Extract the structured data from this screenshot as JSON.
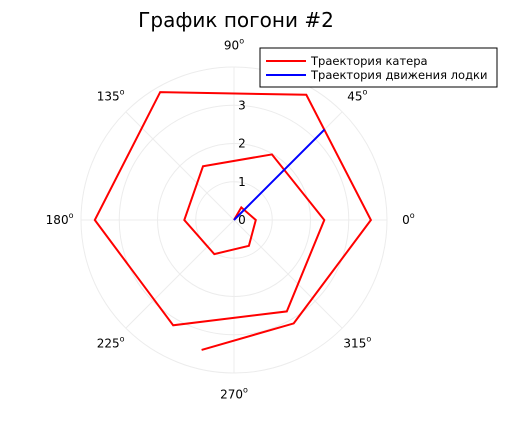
{
  "chart_data": {
    "type": "line",
    "projection": "polar",
    "title": "График погони #2",
    "theta_ticks": [
      {
        "label": "0",
        "deg": 0
      },
      {
        "label": "45",
        "deg": 45
      },
      {
        "label": "90",
        "deg": 90
      },
      {
        "label": "135",
        "deg": 135
      },
      {
        "label": "180",
        "deg": 180
      },
      {
        "label": "225",
        "deg": 225
      },
      {
        "label": "270",
        "deg": 270
      },
      {
        "label": "315",
        "deg": 315
      }
    ],
    "degree_symbol": "o",
    "r_ticks": [
      "0",
      "1",
      "2",
      "3"
    ],
    "rlim": [
      0,
      4
    ],
    "grid": true,
    "legend_position": "top-right",
    "series": [
      {
        "name": "Траектория катера",
        "color": "#ff0000",
        "points": [
          {
            "theta": 0,
            "r": 0
          },
          {
            "theta": 60,
            "r": 0.38
          },
          {
            "theta": 0,
            "r": 0.57
          },
          {
            "theta": 300,
            "r": 0.78
          },
          {
            "theta": 240,
            "r": 1.03
          },
          {
            "theta": 180,
            "r": 1.3
          },
          {
            "theta": 120,
            "r": 1.62
          },
          {
            "theta": 60,
            "r": 1.98
          },
          {
            "theta": 0,
            "r": 2.36
          },
          {
            "theta": 300,
            "r": 2.76
          },
          {
            "theta": 240,
            "r": 3.18
          },
          {
            "theta": 180,
            "r": 3.64
          },
          {
            "theta": 120,
            "r": 3.86
          },
          {
            "theta": 60,
            "r": 3.78
          },
          {
            "theta": 0,
            "r": 3.58
          },
          {
            "theta": 300,
            "r": 3.12
          },
          {
            "theta": 256,
            "r": 3.5
          }
        ]
      },
      {
        "name": "Траектория движения лодки",
        "color": "#0000ff",
        "points": [
          {
            "theta": 45,
            "r": 0
          },
          {
            "theta": 45,
            "r": 3.35
          }
        ]
      }
    ]
  }
}
